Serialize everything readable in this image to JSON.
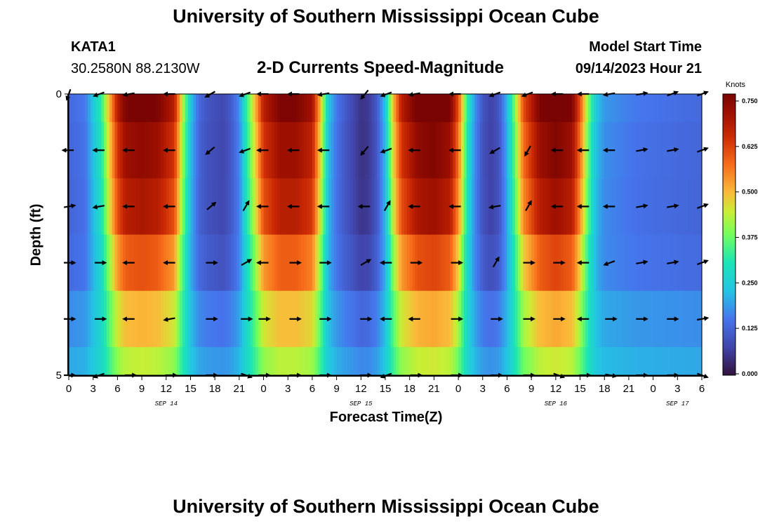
{
  "header": {
    "title": "University of Southern Mississippi Ocean Cube",
    "station": "KATA1",
    "coords": "30.2580N  88.2130W",
    "subtitle": "2-D Currents Speed-Magnitude",
    "model_start_label": "Model Start Time",
    "model_start_value": "09/14/2023 Hour 21"
  },
  "footer": {
    "title": "University of Southern Mississippi Ocean Cube"
  },
  "chart_data": {
    "type": "heatmap",
    "title": "2-D Currents Speed-Magnitude",
    "xlabel": "Forecast Time(Z)",
    "ylabel": "Depth (ft)",
    "x_hours_range": [
      0,
      78
    ],
    "x_ticks": [
      "0",
      "3",
      "6",
      "9",
      "12",
      "15",
      "18",
      "21",
      "0",
      "3",
      "6",
      "9",
      "12",
      "15",
      "18",
      "21",
      "0",
      "3",
      "6",
      "9",
      "12",
      "15",
      "18",
      "21",
      "0",
      "3",
      "6"
    ],
    "date_labels": [
      {
        "label": "SEP 14",
        "hour": 12
      },
      {
        "label": "SEP 15",
        "hour": 36
      },
      {
        "label": "SEP 16",
        "hour": 60
      },
      {
        "label": "SEP 17",
        "hour": 75
      }
    ],
    "y_range": [
      0,
      5
    ],
    "y_tick_labels": [
      {
        "value": 0,
        "label": "0"
      },
      {
        "value": 5,
        "label": "5"
      }
    ],
    "y_minor_ticks": [
      1,
      2,
      3,
      4
    ],
    "colorbar": {
      "title": "Knots",
      "range": [
        0,
        0.75
      ],
      "ticks": [
        "0.000",
        "0.125",
        "0.250",
        "0.375",
        "0.500",
        "0.625",
        "0.750"
      ]
    },
    "depth_rows": [
      0.5,
      1,
      2,
      3,
      4,
      5
    ],
    "row_scale": [
      1.02,
      0.96,
      0.9,
      0.74,
      0.52,
      0.38
    ],
    "row_base": [
      0.03,
      0.03,
      0.035,
      0.06,
      0.12,
      0.16
    ],
    "profile_speed": [
      [
        0,
        0.1
      ],
      [
        2,
        0.12
      ],
      [
        3,
        0.2
      ],
      [
        4,
        0.28
      ],
      [
        5,
        0.45
      ],
      [
        6,
        0.62
      ],
      [
        7,
        0.7
      ],
      [
        9,
        0.72
      ],
      [
        11,
        0.7
      ],
      [
        13,
        0.62
      ],
      [
        14,
        0.4
      ],
      [
        15,
        0.2
      ],
      [
        16,
        0.1
      ],
      [
        17,
        0.07
      ],
      [
        19,
        0.05
      ],
      [
        20,
        0.08
      ],
      [
        21,
        0.14
      ],
      [
        22,
        0.3
      ],
      [
        23,
        0.45
      ],
      [
        24,
        0.62
      ],
      [
        26,
        0.7
      ],
      [
        28,
        0.7
      ],
      [
        30,
        0.65
      ],
      [
        31,
        0.45
      ],
      [
        32,
        0.2
      ],
      [
        33,
        0.12
      ],
      [
        34,
        0.08
      ],
      [
        35,
        0.05
      ],
      [
        36,
        0.02
      ],
      [
        37,
        0.03
      ],
      [
        38,
        0.08
      ],
      [
        39,
        0.2
      ],
      [
        40,
        0.45
      ],
      [
        41,
        0.62
      ],
      [
        43,
        0.72
      ],
      [
        45,
        0.74
      ],
      [
        47,
        0.7
      ],
      [
        48,
        0.55
      ],
      [
        49,
        0.3
      ],
      [
        50,
        0.15
      ],
      [
        51,
        0.07
      ],
      [
        52,
        0.04
      ],
      [
        53,
        0.07
      ],
      [
        54,
        0.18
      ],
      [
        55,
        0.35
      ],
      [
        56,
        0.55
      ],
      [
        58,
        0.7
      ],
      [
        60,
        0.74
      ],
      [
        62,
        0.7
      ],
      [
        63,
        0.55
      ],
      [
        64,
        0.35
      ],
      [
        65,
        0.2
      ],
      [
        66,
        0.15
      ],
      [
        70,
        0.12
      ],
      [
        74,
        0.11
      ],
      [
        78,
        0.1
      ]
    ],
    "arrow_hours": [
      0,
      3.8,
      7.5,
      12.5,
      17.5,
      21.8,
      24,
      27.8,
      31.5,
      36.5,
      39.2,
      42.7,
      47.7,
      52.6,
      56.6,
      60.3,
      63.5,
      66.7,
      70.5,
      74.3,
      78
    ],
    "arrow_row_angles": [
      [
        250,
        200,
        190,
        180,
        210,
        200,
        180,
        180,
        190,
        230,
        200,
        190,
        180,
        200,
        200,
        180,
        180,
        190,
        10,
        20,
        20
      ],
      [
        180,
        180,
        180,
        180,
        220,
        200,
        180,
        180,
        180,
        230,
        200,
        180,
        180,
        210,
        240,
        180,
        180,
        180,
        10,
        10,
        20
      ],
      [
        10,
        190,
        180,
        180,
        40,
        60,
        180,
        180,
        180,
        180,
        60,
        180,
        180,
        190,
        60,
        180,
        180,
        180,
        10,
        10,
        20
      ],
      [
        0,
        0,
        180,
        180,
        0,
        30,
        180,
        0,
        0,
        30,
        180,
        0,
        0,
        60,
        0,
        0,
        180,
        200,
        10,
        10,
        20
      ],
      [
        0,
        0,
        180,
        190,
        0,
        0,
        0,
        0,
        0,
        0,
        180,
        180,
        0,
        0,
        0,
        0,
        180,
        0,
        0,
        0,
        10
      ],
      [
        0,
        200,
        0,
        0,
        0,
        340,
        0,
        0,
        0,
        0,
        200,
        0,
        0,
        0,
        0,
        340,
        0,
        350,
        0,
        0,
        340
      ]
    ]
  }
}
